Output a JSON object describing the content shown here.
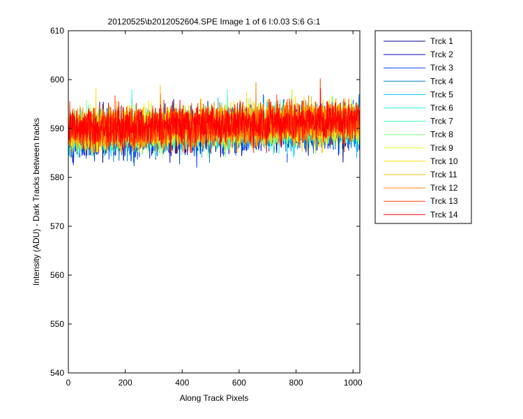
{
  "chart_data": {
    "type": "line",
    "title": "20120525\\b2012052604.SPE  Image 1 of 6  I:0.03  S:6  G:1",
    "xlabel": "Along Track Pixels",
    "ylabel": "Intensity (ADU) - Dark Tracks between tracks",
    "xlim": [
      0,
      1024
    ],
    "ylim": [
      540,
      610
    ],
    "xticks": [
      0,
      200,
      400,
      600,
      800,
      1000
    ],
    "yticks": [
      540,
      550,
      560,
      570,
      580,
      590,
      600,
      610
    ],
    "xtick_labels": [
      "0",
      "200",
      "400",
      "600",
      "800",
      "1000"
    ],
    "ytick_labels": [
      "540",
      "550",
      "560",
      "570",
      "580",
      "590",
      "600",
      "610"
    ],
    "grid": false,
    "legend_position": "outside-top-right",
    "n_points": 1024,
    "series": [
      {
        "name": "Trck 1",
        "color": "#00008f",
        "base": [
          588.5,
          590.5
        ],
        "amp": 3.2,
        "min": 583,
        "max": 596
      },
      {
        "name": "Trck 2",
        "color": "#0000bf",
        "base": [
          588.3,
          590.3
        ],
        "amp": 3.2,
        "min": 583,
        "max": 596
      },
      {
        "name": "Trck 3",
        "color": "#0040ff",
        "base": [
          588.2,
          590.2
        ],
        "amp": 3.4,
        "min": 582,
        "max": 597
      },
      {
        "name": "Trck 4",
        "color": "#0080c0",
        "base": [
          588.6,
          590.6
        ],
        "amp": 3.2,
        "min": 583,
        "max": 597
      },
      {
        "name": "Trck 5",
        "color": "#00bfff",
        "base": [
          588.8,
          590.8
        ],
        "amp": 3.2,
        "min": 584,
        "max": 597
      },
      {
        "name": "Trck 6",
        "color": "#20ffdf",
        "base": [
          589.0,
          591.0
        ],
        "amp": 3.2,
        "min": 584,
        "max": 598
      },
      {
        "name": "Trck 7",
        "color": "#40ffbf",
        "base": [
          589.1,
          591.1
        ],
        "amp": 3.2,
        "min": 584,
        "max": 598
      },
      {
        "name": "Trck 8",
        "color": "#80ff80",
        "base": [
          589.2,
          591.2
        ],
        "amp": 3.2,
        "min": 584,
        "max": 598
      },
      {
        "name": "Trck 9",
        "color": "#dfff20",
        "base": [
          589.4,
          591.4
        ],
        "amp": 3.3,
        "min": 585,
        "max": 599
      },
      {
        "name": "Trck 10",
        "color": "#ffdf00",
        "base": [
          589.5,
          591.5
        ],
        "amp": 3.3,
        "min": 585,
        "max": 599
      },
      {
        "name": "Trck 11",
        "color": "#ffbf00",
        "base": [
          589.5,
          591.5
        ],
        "amp": 3.3,
        "min": 585,
        "max": 600
      },
      {
        "name": "Trck 12",
        "color": "#ff8000",
        "base": [
          589.6,
          591.6
        ],
        "amp": 3.3,
        "min": 585,
        "max": 601
      },
      {
        "name": "Trck 13",
        "color": "#ff4000",
        "base": [
          589.7,
          591.7
        ],
        "amp": 3.3,
        "min": 585,
        "max": 602
      },
      {
        "name": "Trck 14",
        "color": "#ff0000",
        "base": [
          589.8,
          591.8
        ],
        "amp": 3.2,
        "min": 585,
        "max": 602
      }
    ]
  }
}
